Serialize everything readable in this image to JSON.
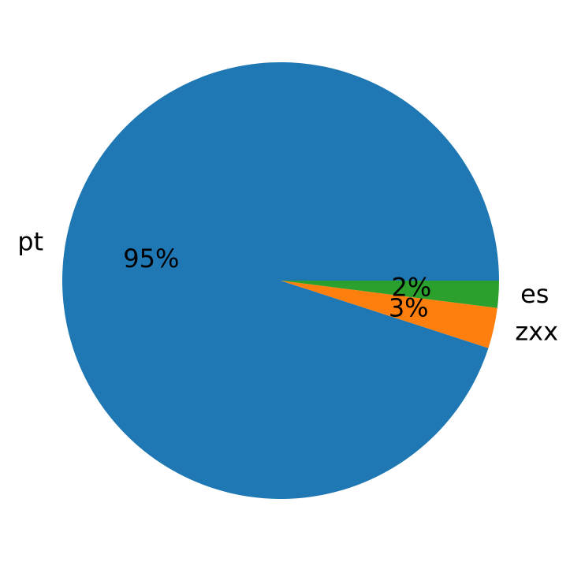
{
  "chart_data": {
    "type": "pie",
    "categories": [
      "pt",
      "zxx",
      "es"
    ],
    "values": [
      95,
      3,
      2
    ],
    "value_labels": [
      "95%",
      "3%",
      "2%"
    ],
    "colors": [
      "#1f77b4",
      "#ff7f0e",
      "#2ca02c"
    ]
  }
}
